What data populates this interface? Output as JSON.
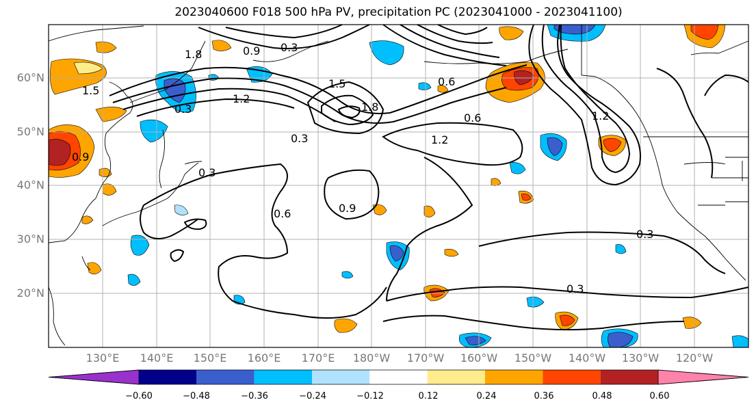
{
  "title": "2023040600 F018 500 hPa PV, precipitation PC (2023041000 - 2023041100)",
  "lat_labels": [
    "60°N",
    "50°N",
    "40°N",
    "30°N",
    "20°N"
  ],
  "lon_labels": [
    "130°E",
    "140°E",
    "150°E",
    "160°E",
    "170°E",
    "180°W",
    "170°W",
    "160°W",
    "150°W",
    "140°W",
    "130°W",
    "120°W"
  ],
  "colorbar": {
    "ticks": [
      "−0.60",
      "−0.48",
      "−0.36",
      "−0.24",
      "−0.12",
      "0.12",
      "0.24",
      "0.36",
      "0.48",
      "0.60"
    ],
    "colors": [
      "#9932cc",
      "#00008b",
      "#3a5fcd",
      "#00bfff",
      "#b0e2ff",
      "#ffffff",
      "#ffec8b",
      "#ffa500",
      "#ff4500",
      "#b22222",
      "#ff82ab"
    ]
  },
  "contour_labels": [
    "0.3",
    "0.9",
    "1.5",
    "1.8",
    "1.2",
    "0.6",
    "0.3",
    "0.3",
    "0.3",
    "0.3",
    "0.9",
    "1.2",
    "0.6",
    "0.6",
    "1.8",
    "0.3",
    "1.5",
    "1.2",
    "0.9"
  ],
  "map_features": {
    "projection": "cylindrical",
    "extent_lon": "120°E to 115°W",
    "extent_lat": "10°N to 70°N",
    "field_contours": "500 hPa PV (black lines)",
    "field_shading": "precipitation PC"
  }
}
